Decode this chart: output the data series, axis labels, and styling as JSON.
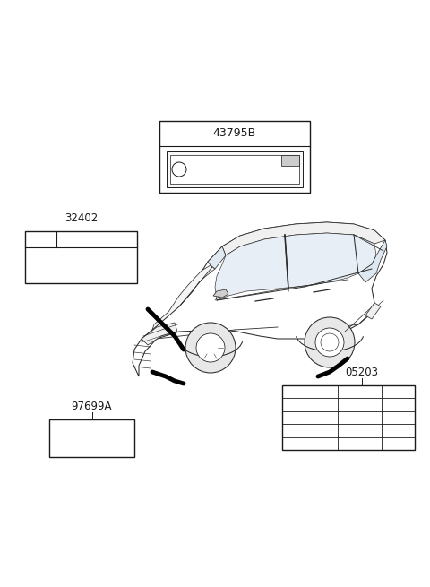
{
  "bg_color": "#ffffff",
  "line_color": "#1a1a1a",
  "label_43795B": "43795B",
  "label_32402": "32402",
  "label_97699A": "97699A",
  "label_05203": "05203",
  "font_size_label": 8.5,
  "car_outline_color": "#2a2a2a",
  "car_lw": 0.75
}
